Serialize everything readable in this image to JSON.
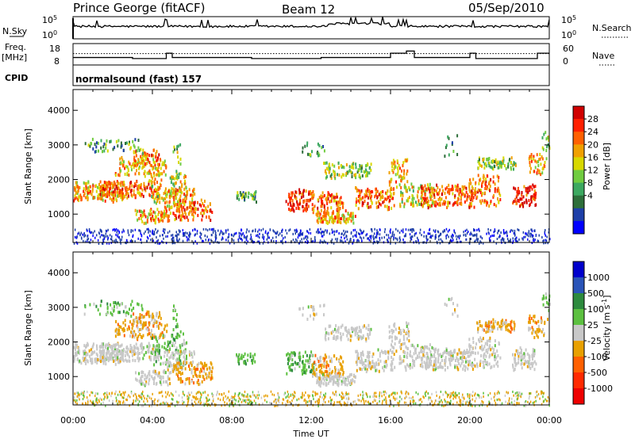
{
  "header": {
    "station": "Prince George (fitACF)",
    "beam": "Beam 12",
    "date": "05/Sep/2010",
    "cpid_program": "normalsound (fast) 157"
  },
  "left_labels": {
    "nsky": "N.Sky",
    "freq_line1": "Freq.",
    "freq_line2": "[MHz]",
    "cpid": "CPID"
  },
  "right_labels": {
    "nsearch": "N.Search",
    "nave": "Nave"
  },
  "chart_data": [
    {
      "type": "line",
      "panel": "noise",
      "yticks_left": [
        "10^5",
        "10^0"
      ],
      "yticks_right": [
        "10^5",
        "10^0"
      ],
      "series": [
        {
          "name": "N.Sky",
          "style": "solid",
          "approx_log10_level": 2.8
        },
        {
          "name": "N.Search",
          "style": "dotted"
        }
      ]
    },
    {
      "type": "line",
      "panel": "frequency",
      "yticks_left": [
        "18",
        "8"
      ],
      "yticks_right": [
        "60",
        "0"
      ],
      "ylim_left": [
        8,
        18
      ],
      "ylim_right": [
        0,
        60
      ],
      "series": [
        {
          "name": "Freq.",
          "style": "solid",
          "approx_value_mhz": 11.5
        },
        {
          "name": "Nave",
          "style": "dotted",
          "approx_value": 32
        }
      ]
    },
    {
      "type": "heatmap",
      "panel": "power",
      "ylabel": "Slant Range [km]",
      "yticks": [
        "1000",
        "2000",
        "3000",
        "4000"
      ],
      "ylim": [
        180,
        4600
      ],
      "xlim_hours": [
        0,
        24
      ],
      "colorbar": {
        "label": "Power [dB]",
        "ticks": [
          "28",
          "24",
          "20",
          "16",
          "12",
          "8",
          "4"
        ],
        "colors": [
          "#0000ff",
          "#1e3fa8",
          "#2d6e3a",
          "#3ca860",
          "#70cc40",
          "#d8d800",
          "#f0a000",
          "#ff6000",
          "#ff2000",
          "#d00000"
        ]
      }
    },
    {
      "type": "heatmap",
      "panel": "velocity",
      "xlabel": "Time UT",
      "ylabel": "Slant Range [km]",
      "yticks": [
        "1000",
        "2000",
        "3000",
        "4000"
      ],
      "ylim": [
        180,
        4600
      ],
      "xticks": [
        "00:00",
        "04:00",
        "08:00",
        "12:00",
        "16:00",
        "20:00",
        "00:00"
      ],
      "xlim_hours": [
        0,
        24
      ],
      "colorbar": {
        "label": "Velocity [m s^-1]",
        "ticks": [
          "1000",
          "500",
          "100",
          "25",
          "-25",
          "-100",
          "-500",
          "-1000"
        ],
        "colors": [
          "#0000cc",
          "#2a54b8",
          "#2d8a3e",
          "#5cc040",
          "#c8c8c8",
          "#e8a000",
          "#ff6000",
          "#ff2a00",
          "#ee0000"
        ]
      }
    }
  ]
}
